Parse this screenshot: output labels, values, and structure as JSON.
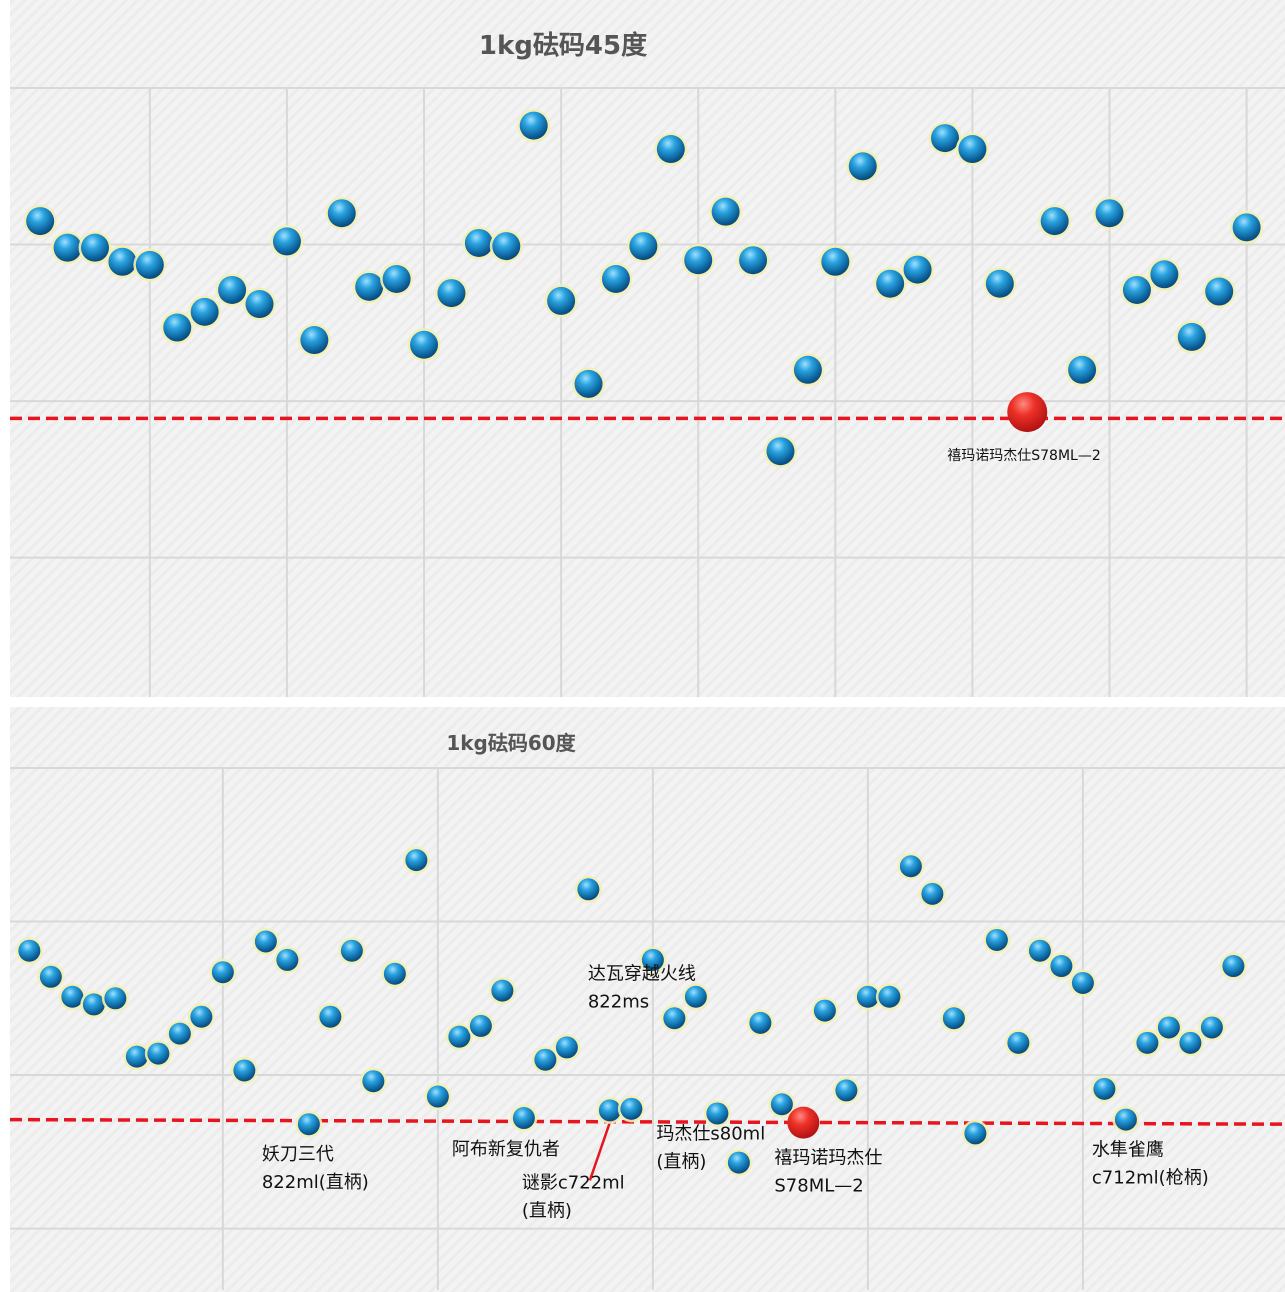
{
  "chart_data": [
    {
      "type": "scatter",
      "title": "1kg砝码45度",
      "xlabel": "",
      "ylabel": "",
      "xlim": [
        -1.1,
        45.4
      ],
      "ylim": [
        -0.89,
        3.0
      ],
      "x_grid_start": 4,
      "x_grid_step": 5,
      "y_grid": [
        0,
        1,
        2,
        3
      ],
      "grid": true,
      "threshold": [
        0.89,
        0.89
      ],
      "threshold_color": "#e8141e",
      "point_color": "#1b8fd0",
      "highlight_color": "#e8201f",
      "highlight_index": 36,
      "values": [
        2.15,
        1.98,
        1.98,
        1.89,
        1.87,
        1.47,
        1.57,
        1.71,
        1.62,
        2.02,
        1.39,
        2.2,
        1.73,
        1.78,
        1.36,
        1.69,
        2.01,
        1.99,
        2.76,
        1.64,
        1.11,
        1.78,
        1.99,
        2.61,
        1.9,
        2.21,
        1.9,
        0.68,
        1.2,
        1.89,
        2.5,
        1.75,
        1.84,
        2.68,
        2.61,
        1.75,
        0.93,
        2.15,
        1.2,
        2.2,
        1.71,
        1.81,
        1.41,
        1.7,
        2.11
      ],
      "annotations": [
        {
          "index": 36,
          "lines": [
            "禧玛诺玛杰仕S78ML—2"
          ]
        }
      ]
    },
    {
      "type": "scatter",
      "title": "1kg砝码60度",
      "xlabel": "",
      "ylabel": "",
      "xlim": [
        -0.9,
        58.4
      ],
      "ylim": [
        -0.4,
        3.0
      ],
      "x_grid_start": 9,
      "x_grid_step": 10,
      "y_grid": [
        0,
        1,
        2,
        3
      ],
      "grid": true,
      "threshold": [
        0.71,
        0.68
      ],
      "threshold_color": "#e8141e",
      "point_color": "#1b8fd0",
      "highlight_color": "#e8201f",
      "highlight_index": 36,
      "values": [
        1.81,
        1.64,
        1.51,
        1.46,
        1.5,
        1.12,
        1.14,
        1.27,
        1.38,
        1.67,
        1.03,
        1.87,
        1.75,
        0.68,
        1.38,
        1.81,
        0.96,
        1.66,
        2.4,
        0.86,
        1.25,
        1.32,
        1.55,
        0.72,
        1.1,
        1.18,
        2.21,
        0.77,
        0.78,
        1.75,
        1.37,
        1.51,
        0.75,
        0.43,
        1.34,
        0.81,
        0.69,
        1.42,
        0.9,
        1.51,
        1.51,
        2.36,
        2.18,
        1.37,
        0.62,
        1.88,
        1.21,
        1.81,
        1.71,
        1.6,
        0.91,
        0.71,
        1.21,
        1.31,
        1.21,
        1.31,
        1.71
      ],
      "annotations": [
        {
          "index": 13,
          "lines": [
            "妖刀三代",
            "822ml(直柄)"
          ]
        },
        {
          "index": 23,
          "lines": [
            "阿布新复仇者"
          ]
        },
        {
          "index": 25,
          "lines": [
            "达瓦穿越火线",
            "822ms"
          ]
        },
        {
          "index": 27,
          "lines": [
            "谜影c722ml",
            "(直柄)"
          ]
        },
        {
          "index": 32,
          "lines": [
            "玛杰仕s80ml",
            "(直柄)"
          ]
        },
        {
          "index": 36,
          "lines": [
            "禧玛诺玛杰仕",
            "S78ML—2"
          ]
        },
        {
          "index": 51,
          "lines": [
            "水隼雀鹰",
            "c712ml(枪柄)"
          ]
        }
      ]
    }
  ]
}
